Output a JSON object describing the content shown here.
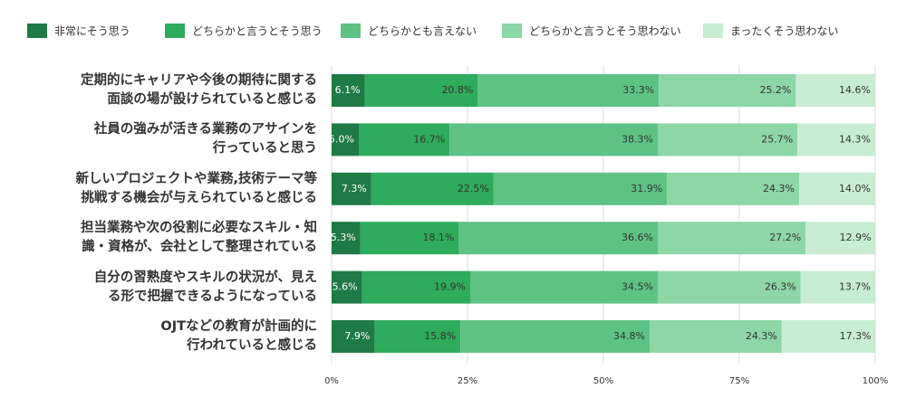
{
  "chart_data": {
    "type": "stacked-bar-horizontal",
    "categories": [
      "定期的にキャリアや今後の期待に関する\n面談の場が設けられていると感じる",
      "社員の強みが活きる業務のアサインを\n行っていると思う",
      "新しいプロジェクトや業務,技術テーマ等\n挑戦する機会が与えられていると感じる",
      "担当業務や次の役割に必要なスキル・知\n識・資格が、会社として整理されている",
      "自分の習熟度やスキルの状況が、見え\nる形で把握できるようになっている",
      "OJTなどの教育が計画的に\n行われていると感じる"
    ],
    "series": [
      {
        "name": "非常にそう思う",
        "color": "#1f7a45",
        "values": [
          6.1,
          5.0,
          7.3,
          5.3,
          5.6,
          7.9
        ],
        "value_labels": [
          "6.1%",
          "5.0%",
          "7.3%",
          "5.3%",
          "5.6%",
          "7.9%"
        ]
      },
      {
        "name": "どちらかと言うとそう思う",
        "color": "#2eab5c",
        "values": [
          20.8,
          16.7,
          22.5,
          18.1,
          19.9,
          15.8
        ],
        "value_labels": [
          "20.8%",
          "16.7%",
          "22.5%",
          "18.1%",
          "19.9%",
          "15.8%"
        ]
      },
      {
        "name": "どちらかとも言えない",
        "color": "#5ec285",
        "values": [
          33.3,
          38.3,
          31.9,
          36.6,
          34.5,
          34.8
        ],
        "value_labels": [
          "33.3%",
          "38.3%",
          "31.9%",
          "36.6%",
          "34.5%",
          "34.8%"
        ]
      },
      {
        "name": "どちらかと言うとそう思わない",
        "color": "#8dd6a6",
        "values": [
          25.2,
          25.7,
          24.3,
          27.2,
          26.3,
          24.3
        ],
        "value_labels": [
          "25.2%",
          "25.7%",
          "24.3%",
          "27.2%",
          "26.3%",
          "24.3%"
        ]
      },
      {
        "name": "まったくそう思わない",
        "color": "#c8ecd4",
        "values": [
          14.6,
          14.3,
          14.0,
          12.9,
          13.7,
          17.3
        ],
        "value_labels": [
          "14.6%",
          "14.3%",
          "14.0%",
          "12.9%",
          "13.7%",
          "17.3%"
        ]
      }
    ],
    "xlim": [
      0,
      100
    ],
    "xticks": [
      {
        "value": 0,
        "label": "0%"
      },
      {
        "value": 25,
        "label": "25%"
      },
      {
        "value": 50,
        "label": "50%"
      },
      {
        "value": 75,
        "label": "75%"
      },
      {
        "value": 100,
        "label": "100%"
      }
    ],
    "grid": true
  }
}
